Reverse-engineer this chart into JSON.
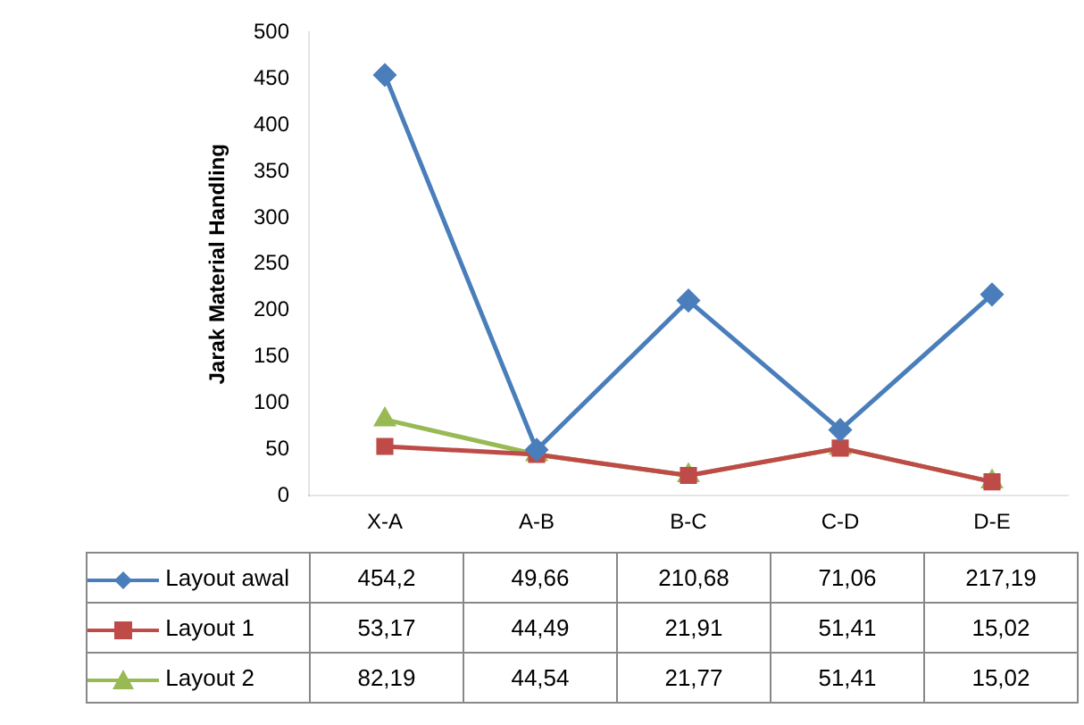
{
  "chart_data": {
    "type": "line",
    "ylabel": "Jarak Material Handling",
    "categories": [
      "X-A",
      "A-B",
      "B-C",
      "C-D",
      "D-E"
    ],
    "series": [
      {
        "name": "Layout awal",
        "color": "#4a7ebb",
        "marker": "diamond",
        "values": [
          454.2,
          49.66,
          210.68,
          71.06,
          217.19
        ],
        "value_labels": [
          "454,2",
          "49,66",
          "210,68",
          "71,06",
          "217,19"
        ]
      },
      {
        "name": "Layout 1",
        "color": "#be4b48",
        "marker": "square",
        "values": [
          53.17,
          44.49,
          21.91,
          51.41,
          15.02
        ],
        "value_labels": [
          "53,17",
          "44,49",
          "21,91",
          "51,41",
          "15,02"
        ]
      },
      {
        "name": "Layout 2",
        "color": "#98b954",
        "marker": "triangle",
        "values": [
          82.19,
          44.54,
          21.77,
          51.41,
          15.02
        ],
        "value_labels": [
          "82,19",
          "44,54",
          "21,77",
          "51,41",
          "15,02"
        ]
      }
    ],
    "ylim": [
      0,
      500
    ],
    "yticks": [
      0,
      50,
      100,
      150,
      200,
      250,
      300,
      350,
      400,
      450,
      500
    ],
    "grid": false,
    "legend": "bottom",
    "line_style": "solid"
  }
}
